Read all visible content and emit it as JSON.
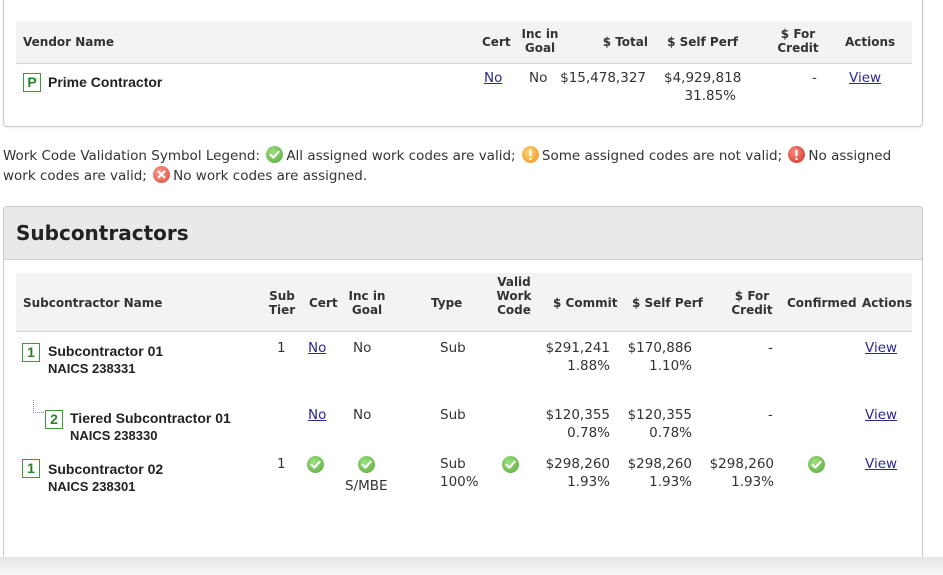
{
  "prime": {
    "headers": {
      "vendor_name": "Vendor Name",
      "cert": "Cert",
      "inc_in_goal_1": "Inc in",
      "inc_in_goal_2": "Goal",
      "total": "$ Total",
      "self_perf": "$ Self Perf",
      "for_credit_1": "$ For",
      "for_credit_2": "Credit",
      "actions": "Actions"
    },
    "row": {
      "tier": "P",
      "name": "Prime Contractor",
      "cert": "No",
      "inc_in_goal": "No",
      "total": "$15,478,327",
      "self_perf": "$4,929,818",
      "self_perf_pct": "31.85%",
      "for_credit": "-",
      "action": "View"
    }
  },
  "legend": {
    "intro": "Work Code Validation Symbol Legend:",
    "valid": "All assigned work codes are valid;",
    "some_invalid": "Some assigned codes are not valid;",
    "none_valid_1": "No assigned work",
    "none_valid_2": "codes are valid;",
    "not_assigned": "No work codes are assigned."
  },
  "subcontractors": {
    "title": "Subcontractors",
    "headers": {
      "name": "Subcontractor Name",
      "sub_tier_1": "Sub",
      "sub_tier_2": "Tier",
      "cert": "Cert",
      "inc_in_goal_1": "Inc in",
      "inc_in_goal_2": "Goal",
      "type": "Type",
      "valid_work_code_1": "Valid",
      "valid_work_code_2": "Work",
      "valid_work_code_3": "Code",
      "commit": "$ Commit",
      "self_perf": "$ Self Perf",
      "for_credit_1": "$ For",
      "for_credit_2": "Credit",
      "confirmed": "Confirmed",
      "actions": "Actions"
    },
    "rows": [
      {
        "tier_box": "1",
        "name": "Subcontractor 01",
        "naics": "NAICS 238331",
        "sub_tier": "1",
        "cert": "No",
        "inc_in_goal": "No",
        "type": "Sub",
        "commit": "$291,241",
        "commit_pct": "1.88%",
        "self_perf": "$170,886",
        "self_perf_pct": "1.10%",
        "for_credit": "-",
        "action": "View"
      },
      {
        "tier_box": "2",
        "name": "Tiered Subcontractor 01",
        "naics": "NAICS 238330",
        "cert": "No",
        "inc_in_goal": "No",
        "type": "Sub",
        "commit": "$120,355",
        "commit_pct": "0.78%",
        "self_perf": "$120,355",
        "self_perf_pct": "0.78%",
        "for_credit": "-",
        "action": "View"
      },
      {
        "tier_box": "1",
        "name": "Subcontractor 02",
        "naics": "NAICS 238301",
        "sub_tier": "1",
        "inc_in_goal_note": "S/MBE",
        "type": "Sub",
        "type_pct": "100%",
        "commit": "$298,260",
        "commit_pct": "1.93%",
        "self_perf": "$298,260",
        "self_perf_pct": "1.93%",
        "for_credit": "$298,260",
        "for_credit_pct": "1.93%",
        "action": "View"
      }
    ]
  },
  "colors": {
    "accent_green": "#3c9a3c",
    "link": "#2a2a8f",
    "header_bg": "#f3f3f3"
  }
}
